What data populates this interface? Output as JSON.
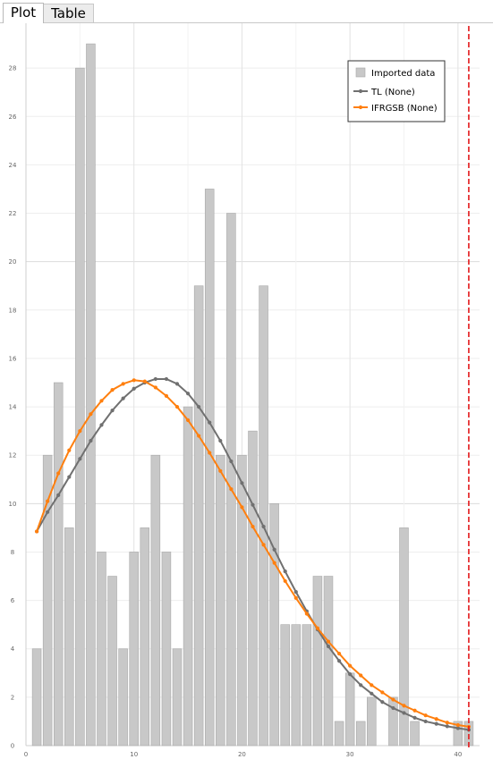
{
  "tabs": [
    {
      "label": "Plot",
      "active": true
    },
    {
      "label": "Table",
      "active": false
    }
  ],
  "colors": {
    "bars": "#c8c8c8",
    "bar_stroke": "#a8a8a8",
    "tl": "#707070",
    "ifrgsb": "#ff7f0e",
    "marker_line": "#e31a1c",
    "grid": "#e6e6e6"
  },
  "chart_data": {
    "type": "bar",
    "title": "",
    "xlabel": "",
    "ylabel": "",
    "xlim": [
      0,
      42
    ],
    "ylim": [
      0,
      30
    ],
    "xticks": [
      0,
      10,
      20,
      30,
      40
    ],
    "yticks": [
      0,
      2,
      4,
      6,
      8,
      10,
      12,
      14,
      16,
      18,
      20,
      22,
      24,
      26,
      28
    ],
    "grid": true,
    "legend_position": "top-right",
    "bars": {
      "name": "Imported data",
      "x": [
        1,
        2,
        3,
        4,
        5,
        6,
        7,
        8,
        9,
        10,
        11,
        12,
        13,
        14,
        15,
        16,
        17,
        18,
        19,
        20,
        21,
        22,
        23,
        24,
        25,
        26,
        27,
        28,
        29,
        30,
        31,
        32,
        33,
        34,
        35,
        36,
        37,
        38,
        39,
        40,
        41
      ],
      "values": [
        4,
        12,
        15,
        9,
        28,
        29,
        8,
        7,
        4,
        8,
        9,
        12,
        8,
        4,
        14,
        19,
        23,
        12,
        22,
        12,
        13,
        19,
        10,
        5,
        5,
        5,
        7,
        7,
        1,
        3,
        1,
        2,
        0,
        2,
        9,
        1,
        0,
        0,
        0,
        1,
        1
      ]
    },
    "series": [
      {
        "name": "TL (None)",
        "x": [
          1,
          2,
          3,
          4,
          5,
          6,
          7,
          8,
          9,
          10,
          11,
          12,
          13,
          14,
          15,
          16,
          17,
          18,
          19,
          20,
          21,
          22,
          23,
          24,
          25,
          26,
          27,
          28,
          29,
          30,
          31,
          32,
          33,
          34,
          35,
          36,
          37,
          38,
          39,
          40,
          41
        ],
        "values": [
          8.85,
          9.65,
          10.35,
          11.1,
          11.85,
          12.6,
          13.25,
          13.85,
          14.35,
          14.75,
          15.0,
          15.15,
          15.15,
          14.95,
          14.55,
          14.0,
          13.35,
          12.6,
          11.75,
          10.85,
          9.95,
          9.05,
          8.1,
          7.2,
          6.35,
          5.55,
          4.8,
          4.1,
          3.5,
          2.95,
          2.5,
          2.15,
          1.8,
          1.55,
          1.35,
          1.15,
          1.0,
          0.9,
          0.8,
          0.72,
          0.65
        ]
      },
      {
        "name": "IFRGSB (None)",
        "x": [
          1,
          2,
          3,
          4,
          5,
          6,
          7,
          8,
          9,
          10,
          11,
          12,
          13,
          14,
          15,
          16,
          17,
          18,
          19,
          20,
          21,
          22,
          23,
          24,
          25,
          26,
          27,
          28,
          29,
          30,
          31,
          32,
          33,
          34,
          35,
          36,
          37,
          38,
          39,
          40,
          41
        ],
        "values": [
          8.85,
          10.1,
          11.25,
          12.2,
          13.0,
          13.7,
          14.25,
          14.7,
          14.95,
          15.1,
          15.05,
          14.8,
          14.45,
          14.0,
          13.45,
          12.8,
          12.1,
          11.35,
          10.6,
          9.85,
          9.05,
          8.3,
          7.55,
          6.8,
          6.1,
          5.45,
          4.85,
          4.3,
          3.8,
          3.3,
          2.9,
          2.5,
          2.2,
          1.9,
          1.65,
          1.45,
          1.25,
          1.1,
          0.95,
          0.85,
          0.78
        ]
      }
    ],
    "vertical_marker_x": 41
  }
}
